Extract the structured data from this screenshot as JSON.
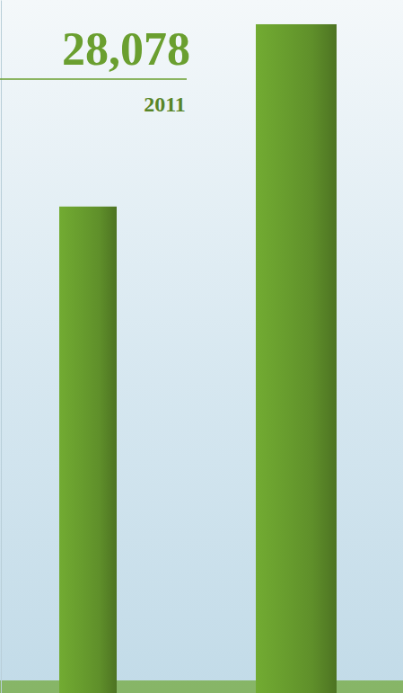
{
  "chart_data": {
    "type": "bar",
    "categories": [
      "2011",
      null
    ],
    "values": [
      28078,
      38600
    ],
    "value_labels": [
      "28,078",
      null
    ],
    "data_labels": true,
    "color": "#5f8f2a",
    "ylim": [
      0,
      40000
    ],
    "tick_labels": false,
    "grid": false
  }
}
